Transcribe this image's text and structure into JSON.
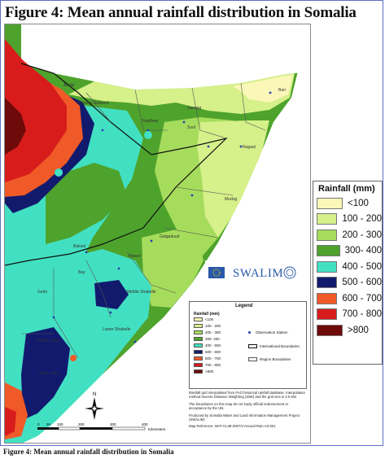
{
  "figure_title": "Figure 4:  Mean annual rainfall distribution in Somalia",
  "caption": "Figure 4:  Mean annual rainfall distribution in Somalia",
  "logo_text": "SWALIM",
  "legend": {
    "title": "Rainfall (mm)",
    "classes": [
      {
        "label": "<100",
        "color": "#fbf7b8"
      },
      {
        "label": "100 - 200",
        "color": "#d6f08a"
      },
      {
        "label": "200 - 300",
        "color": "#a6dc5c"
      },
      {
        "label": "300- 400",
        "color": "#4ea32c"
      },
      {
        "label": "400 - 500",
        "color": "#42e0c2"
      },
      {
        "label": "500 - 600",
        "color": "#121a6e"
      },
      {
        "label": "600 - 700",
        "color": "#f05a28"
      },
      {
        "label": "700 - 800",
        "color": "#d81c1c"
      },
      {
        "label": ">800",
        "color": "#6e0a0a"
      }
    ]
  },
  "inner_legend": {
    "title": "Legend",
    "subtitle": "Rainfall (mm)",
    "classes": [
      "<100",
      "100 - 200",
      "200 - 300",
      "300- 400",
      "400 - 500",
      "500 - 600",
      "600 - 700",
      "700 - 800",
      ">800"
    ],
    "symbols": [
      "Observation Station",
      "International Boundaries",
      "Region Boundaries"
    ]
  },
  "notes": [
    "Rainfall grid interpolated from FAO historical rainfall database. Interpolation method Inverse Distance Weighting (IDW) and the grid size is 2.5 KM",
    "The boundaries on this map do not imply official endorsement or acceptance by the UN.",
    "Produced by Somalia Water and Land Information Management Project (SWALIM)",
    "Map Reference: WAT-CLIM-2007/2-Annual Rain A3-001"
  ],
  "regions": [
    "Awdal",
    "Woqooyi Galbeed",
    "Togdheer",
    "Sanaag",
    "Bari",
    "Sool",
    "Nugaal",
    "Mudug",
    "Galgaduud",
    "Hiraan",
    "Bakool",
    "Bay",
    "Gedo",
    "Middle Shabelle",
    "Lower Shabelle",
    "Middle Juba",
    "Lower Juba"
  ],
  "scale_bar": {
    "ticks": [
      "0",
      "50",
      "100",
      "200",
      "300",
      "400"
    ],
    "unit": "Kilometers"
  },
  "north_label": "N"
}
